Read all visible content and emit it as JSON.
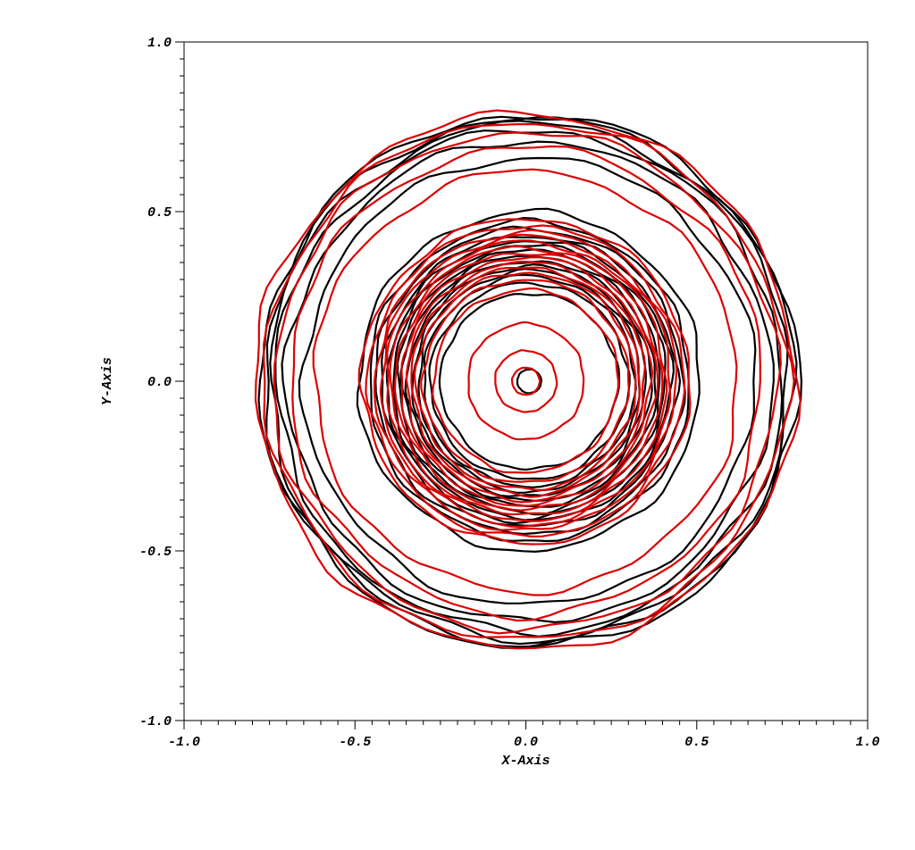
{
  "chart_data": {
    "type": "contour",
    "title": "",
    "xlabel": "X-Axis",
    "ylabel": "Y-Axis",
    "xlim": [
      -1.0,
      1.0
    ],
    "ylim": [
      -1.0,
      1.0
    ],
    "x_ticks": [
      -1.0,
      -0.5,
      0.0,
      0.5,
      1.0
    ],
    "y_ticks": [
      -1.0,
      -0.5,
      0.0,
      0.5,
      1.0
    ],
    "x_tick_labels": [
      "-1.0",
      "-0.5",
      "0.0",
      "0.5",
      "1.0"
    ],
    "y_tick_labels": [
      "-1.0",
      "-0.5",
      "0.0",
      "0.5",
      "1.0"
    ],
    "minor_ticks_per_major": 10,
    "grid": false,
    "series": [
      {
        "color": "#000000",
        "center": [
          0.01,
          0.0
        ],
        "contour_radii": [
          0.035,
          0.26,
          0.29,
          0.31,
          0.325,
          0.34,
          0.355,
          0.37,
          0.385,
          0.4,
          0.415,
          0.43,
          0.45,
          0.47,
          0.5,
          0.66,
          0.71,
          0.74,
          0.76,
          0.775,
          0.785
        ]
      },
      {
        "color": "#dd0000",
        "center": [
          0.0,
          0.0
        ],
        "contour_radii": [
          0.04,
          0.09,
          0.17,
          0.27,
          0.3,
          0.32,
          0.335,
          0.35,
          0.365,
          0.38,
          0.395,
          0.41,
          0.425,
          0.44,
          0.46,
          0.48,
          0.62,
          0.69,
          0.735,
          0.765,
          0.79
        ]
      }
    ]
  }
}
